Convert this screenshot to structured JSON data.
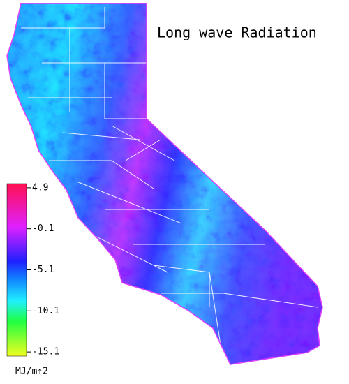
{
  "title": "Long wave Radiation",
  "colorbar": {
    "ticks": [
      4.9,
      -0.1,
      -5.1,
      -10.1,
      -15.1
    ],
    "range": [
      -15.6,
      5.4
    ],
    "unit": "MJ/m↑2"
  }
}
